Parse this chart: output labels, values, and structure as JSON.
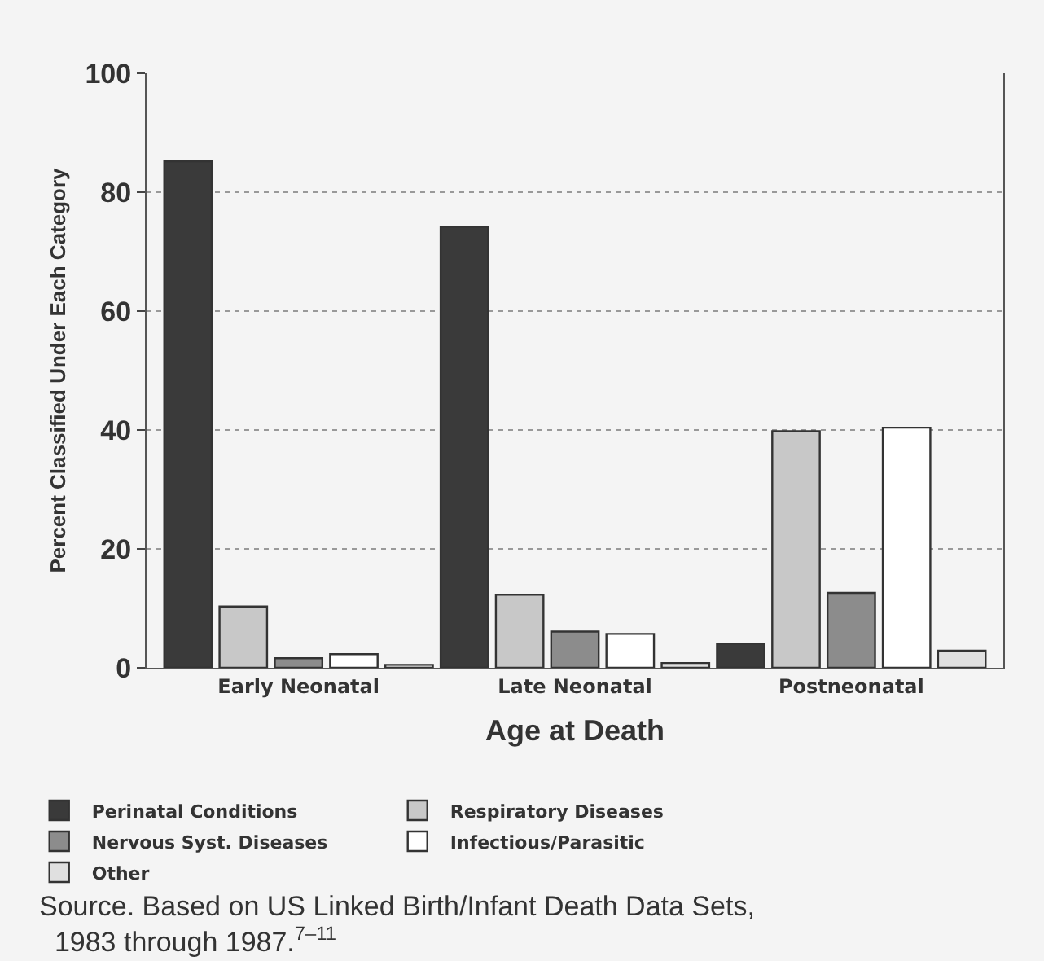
{
  "chart_data": {
    "type": "bar",
    "xlabel": "Age at Death",
    "ylabel": "Percent Classified Under Each Category",
    "categories": [
      "Early Neonatal",
      "Late Neonatal",
      "Postneonatal"
    ],
    "series": [
      {
        "name": "Perinatal Conditions",
        "color": "#3a3a3a",
        "values": [
          85.2,
          74.2,
          4.1
        ]
      },
      {
        "name": "Respiratory Diseases",
        "color": "#c8c8c8",
        "values": [
          10.3,
          12.3,
          39.8
        ]
      },
      {
        "name": "Nervous Syst. Diseases",
        "color": "#8c8c8c",
        "values": [
          1.6,
          6.1,
          12.6
        ]
      },
      {
        "name": "Infectious/Parasitic",
        "color": "#ffffff",
        "values": [
          2.3,
          5.7,
          40.4
        ]
      },
      {
        "name": "Other",
        "color": "#e0e0e0",
        "values": [
          0.5,
          0.8,
          2.9
        ]
      }
    ],
    "ylim": [
      0,
      100
    ],
    "yticks": [
      0,
      20,
      40,
      60,
      80,
      100
    ],
    "grid": "y",
    "legend": "bottom",
    "annotations": [
      "Source. Based on US Linked Birth/Infant Death Data Sets, 1983 through 1987.$^{7–11}$"
    ]
  }
}
